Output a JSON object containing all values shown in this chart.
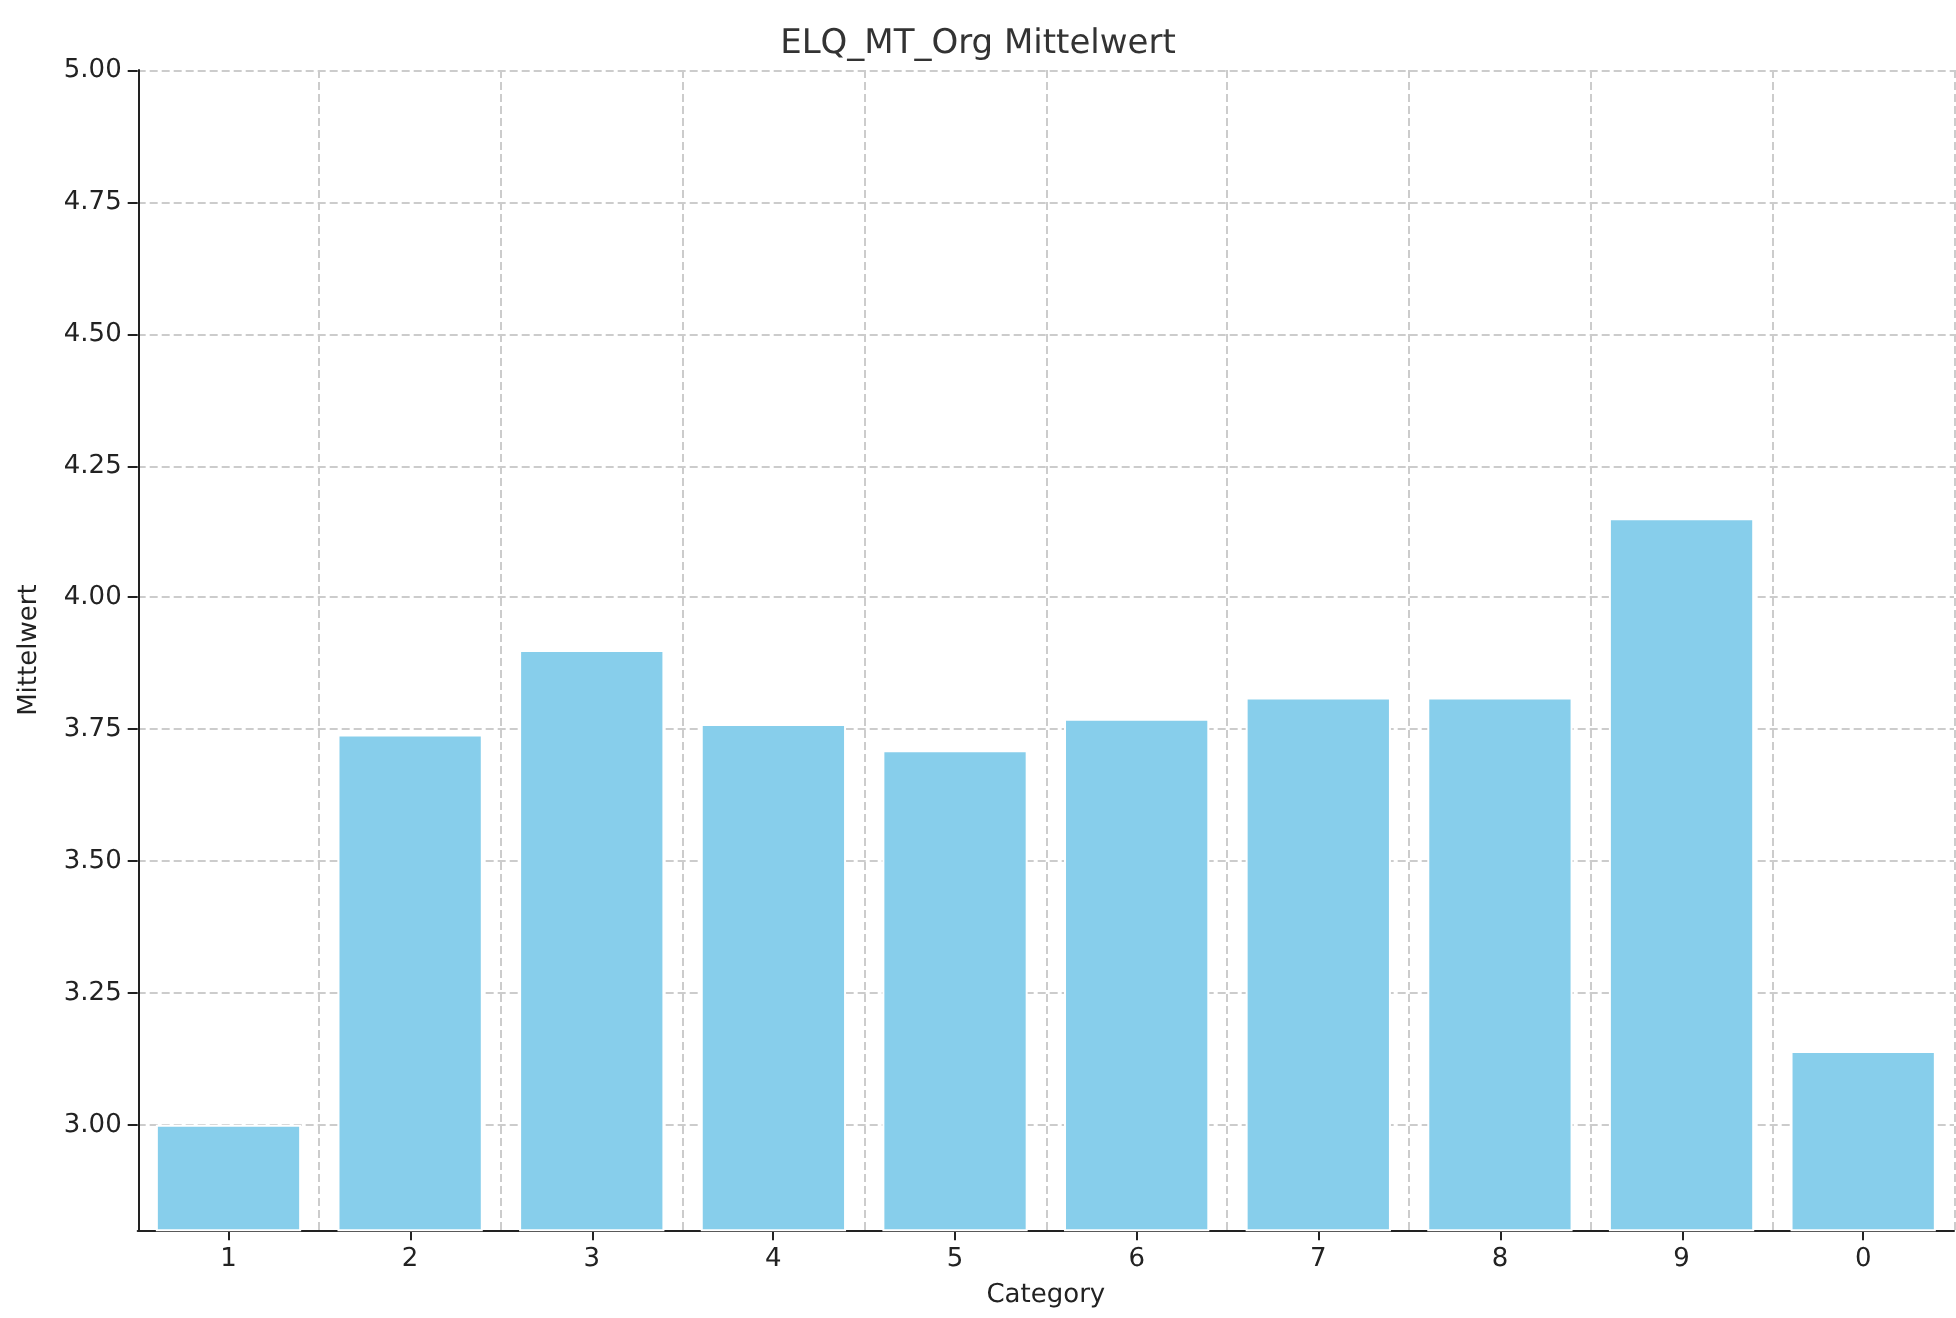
{
  "chart_data": {
    "type": "bar",
    "title": "ELQ_MT_Org Mittelwert",
    "xlabel": "Category",
    "ylabel": "Mittelwert",
    "categories": [
      "1",
      "2",
      "3",
      "4",
      "5",
      "6",
      "7",
      "8",
      "9",
      "0"
    ],
    "values": [
      3.0,
      3.74,
      3.9,
      3.76,
      3.71,
      3.77,
      3.81,
      3.81,
      4.15,
      3.14
    ],
    "color": "#87ceeb",
    "ylim": [
      2.8,
      5.0
    ],
    "yticks": [
      {
        "value": 3,
        "label": "3.00"
      },
      {
        "value": 3.25,
        "label": "3.25"
      },
      {
        "value": 3.5,
        "label": "3.50"
      },
      {
        "value": 3.75,
        "label": "3.75"
      },
      {
        "value": 4,
        "label": "4.00"
      },
      {
        "value": 4.25,
        "label": "4.25"
      },
      {
        "value": 4.5,
        "label": "4.50"
      },
      {
        "value": 4.75,
        "label": "4.75"
      },
      {
        "value": 5,
        "label": "5.00"
      }
    ],
    "grid": true
  }
}
